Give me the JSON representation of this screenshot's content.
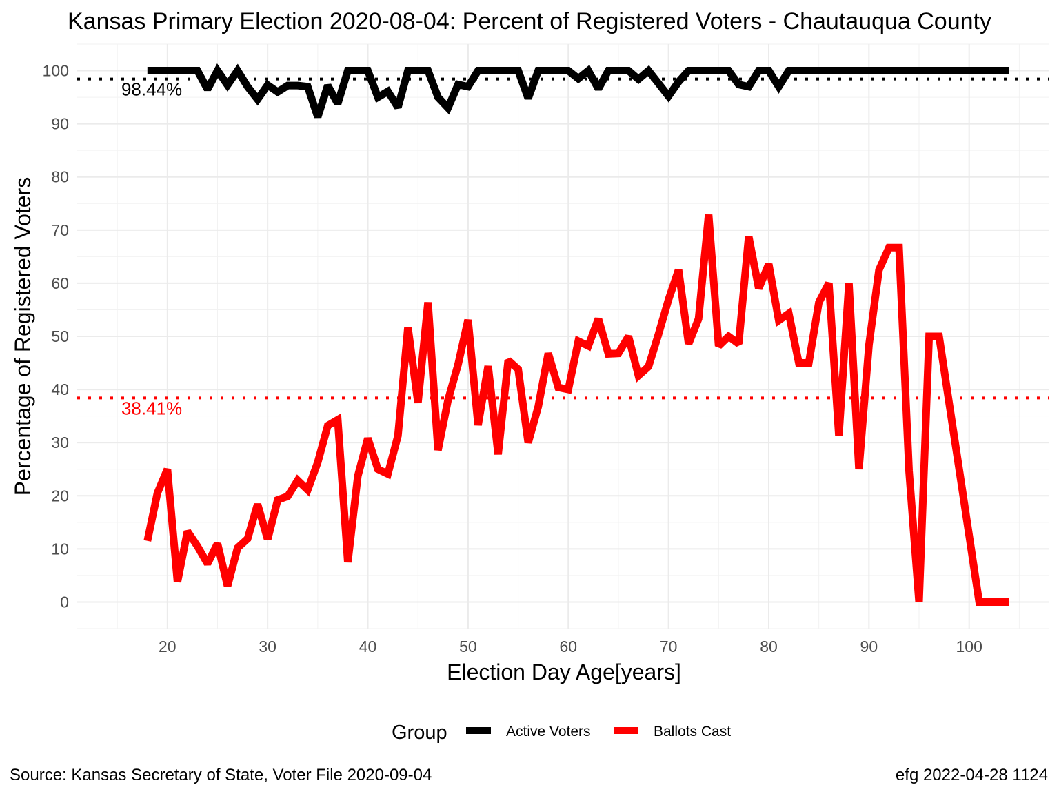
{
  "chart_data": {
    "type": "line",
    "title": "Kansas Primary Election 2020-08-04:  Percent of Registered Voters - Chautauqua County",
    "xlabel": "Election Day Age[years]",
    "ylabel": "Percentage of Registered Voters",
    "xlim": [
      11,
      108
    ],
    "ylim": [
      -5,
      105
    ],
    "x_ticks": [
      20,
      30,
      40,
      50,
      60,
      70,
      80,
      90,
      100
    ],
    "y_ticks": [
      0,
      10,
      20,
      30,
      40,
      50,
      60,
      70,
      80,
      90,
      100
    ],
    "grid": true,
    "legend": {
      "title": "Group",
      "position": "bottom",
      "items": [
        {
          "label": "Active Voters",
          "color": "#000000"
        },
        {
          "label": "Ballots Cast",
          "color": "#ff0000"
        }
      ]
    },
    "reference_lines": [
      {
        "value": 98.44,
        "label": "98.44%",
        "color": "#000000",
        "style": "dotted"
      },
      {
        "value": 38.41,
        "label": "38.41%",
        "color": "#ff0000",
        "style": "dotted"
      }
    ],
    "series": [
      {
        "name": "Active Voters",
        "color": "#000000",
        "x": [
          18,
          19,
          20,
          21,
          22,
          23,
          24,
          25,
          26,
          27,
          28,
          29,
          30,
          31,
          32,
          33,
          34,
          35,
          36,
          37,
          38,
          39,
          40,
          41,
          42,
          43,
          44,
          45,
          46,
          47,
          48,
          49,
          50,
          51,
          52,
          53,
          54,
          55,
          56,
          57,
          58,
          59,
          60,
          61,
          62,
          63,
          64,
          65,
          66,
          67,
          68,
          69,
          70,
          71,
          72,
          73,
          74,
          75,
          76,
          77,
          78,
          79,
          80,
          81,
          82,
          83,
          84,
          85,
          86,
          87,
          88,
          89,
          90,
          91,
          92,
          93,
          94,
          95,
          96,
          97,
          98,
          99,
          100,
          101,
          102,
          103,
          104
        ],
        "y": [
          100,
          100,
          100,
          100,
          100,
          100,
          96.5,
          100,
          97.3,
          100,
          97,
          94.6,
          97.3,
          96,
          97.2,
          97.2,
          97,
          91.3,
          97.2,
          93.8,
          100,
          100,
          100,
          95,
          96.1,
          93.1,
          100,
          100,
          100,
          95,
          93,
          97.4,
          97,
          100,
          100,
          100,
          100,
          100,
          94.8,
          100,
          100,
          100,
          100,
          98.5,
          100,
          96.6,
          100,
          100,
          100,
          98.4,
          100,
          97.6,
          95.2,
          97.9,
          100,
          100,
          100,
          100,
          100,
          97.4,
          97,
          100,
          100,
          97,
          100,
          100,
          100,
          100,
          100,
          100,
          100,
          100,
          100,
          100,
          100,
          100,
          100,
          100,
          100,
          100,
          100,
          100,
          100,
          100,
          100,
          100,
          100
        ]
      },
      {
        "name": "Ballots Cast",
        "color": "#ff0000",
        "x": [
          18,
          19,
          20,
          21,
          22,
          23,
          24,
          25,
          26,
          27,
          28,
          29,
          30,
          31,
          32,
          33,
          34,
          35,
          36,
          37,
          38,
          39,
          40,
          41,
          42,
          43,
          44,
          45,
          46,
          47,
          48,
          49,
          50,
          51,
          52,
          53,
          54,
          55,
          56,
          57,
          58,
          59,
          60,
          61,
          62,
          63,
          64,
          65,
          66,
          67,
          68,
          69,
          70,
          71,
          72,
          73,
          74,
          75,
          76,
          77,
          78,
          79,
          80,
          81,
          82,
          83,
          84,
          85,
          86,
          87,
          88,
          89,
          90,
          91,
          92,
          93,
          94,
          95,
          96,
          97,
          98,
          99,
          100,
          101,
          102,
          103,
          104
        ],
        "y": [
          11.5,
          20.5,
          25,
          3.8,
          13.3,
          10.5,
          7.2,
          11,
          3,
          10.2,
          11.9,
          18.4,
          11.8,
          19.2,
          19.9,
          22.9,
          21.1,
          26.3,
          33.2,
          34.3,
          7.5,
          23.7,
          30.8,
          25,
          24.1,
          31.3,
          51.7,
          37.5,
          56.4,
          28.6,
          38,
          44.7,
          53.1,
          33.3,
          44.4,
          27.8,
          45.5,
          43.8,
          30,
          36.8,
          46.8,
          40.4,
          40,
          49.1,
          48.2,
          53.3,
          46.7,
          46.8,
          50,
          42.6,
          44.3,
          50.4,
          56.9,
          62.5,
          48.6,
          53.3,
          72.9,
          48.2,
          50,
          48.6,
          68.8,
          59,
          63.6,
          53,
          54.3,
          45,
          45,
          56.4,
          60,
          31.3,
          60,
          25,
          48.4,
          62.5,
          66.7,
          66.7,
          24.7,
          0,
          50,
          50,
          37.5,
          25,
          12.5,
          0,
          0,
          0,
          0
        ]
      }
    ]
  },
  "caption": {
    "left": "Source:  Kansas Secretary of State, Voter File  2020-09-04",
    "right": "efg 2022-04-28 1124"
  }
}
